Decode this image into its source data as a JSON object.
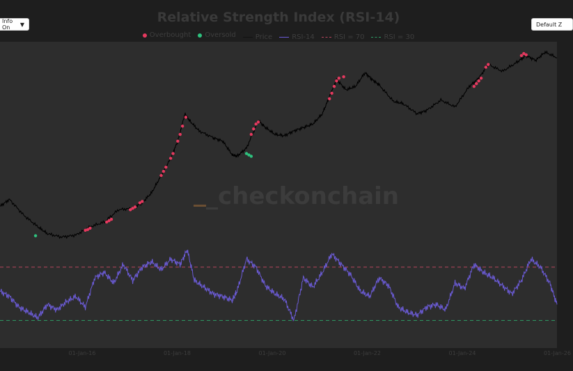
{
  "controls": {
    "info_toggle": "Info On",
    "info_arrow": "▼",
    "zoom_button": "Default Z"
  },
  "watermark": "_checkonchain",
  "colors": {
    "background": "#1e1e1e",
    "plot_bg": "#2d2d2d",
    "overbought": "#e6395f",
    "oversold": "#2ec27e",
    "price": "#000000",
    "rsi": "#6b5bd6",
    "rsi70": "#b8465e",
    "rsi30": "#2f9e66"
  },
  "chart_data": {
    "type": "line",
    "title": "Relative Strength Index (RSI-14)",
    "legend": [
      {
        "name": "Overbought",
        "kind": "dot",
        "color": "#e6395f"
      },
      {
        "name": "Oversold",
        "kind": "dot",
        "color": "#2ec27e"
      },
      {
        "name": "Price",
        "kind": "line",
        "color": "#000000"
      },
      {
        "name": "RSI-14",
        "kind": "line",
        "color": "#6b5bd6"
      },
      {
        "name": "RSI = 70",
        "kind": "dash",
        "color": "#b8465e"
      },
      {
        "name": "RSI = 30",
        "kind": "dash",
        "color": "#2f9e66"
      }
    ],
    "legend_position": "top-center",
    "x_ticks": [
      "01-Jan-16",
      "01-Jan-18",
      "01-Jan-20",
      "01-Jan-22",
      "01-Jan-24",
      "01-Jan-26"
    ],
    "x_range": [
      2014.0,
      2025.75
    ],
    "rsi_range": [
      25,
      85
    ],
    "grid": false,
    "price_log_scale": true,
    "price_range_log10": [
      2.0,
      5.15
    ],
    "price": {
      "x": [
        2014.0,
        2014.2,
        2014.5,
        2014.8,
        2015.0,
        2015.3,
        2015.6,
        2015.9,
        2016.2,
        2016.5,
        2016.8,
        2017.0,
        2017.2,
        2017.4,
        2017.6,
        2017.75,
        2017.9,
        2018.0,
        2018.2,
        2018.5,
        2018.7,
        2018.9,
        2019.0,
        2019.2,
        2019.45,
        2019.6,
        2019.8,
        2020.0,
        2020.2,
        2020.4,
        2020.6,
        2020.8,
        2020.95,
        2021.1,
        2021.3,
        2021.5,
        2021.7,
        2021.85,
        2022.0,
        2022.3,
        2022.5,
        2022.8,
        2023.0,
        2023.3,
        2023.6,
        2023.9,
        2024.1,
        2024.3,
        2024.6,
        2024.9,
        2025.1,
        2025.3,
        2025.5,
        2025.75
      ],
      "log10": [
        2.85,
        2.95,
        2.72,
        2.55,
        2.45,
        2.4,
        2.43,
        2.55,
        2.62,
        2.8,
        2.82,
        2.9,
        3.05,
        3.3,
        3.55,
        3.8,
        4.2,
        4.1,
        3.95,
        3.85,
        3.8,
        3.6,
        3.58,
        3.7,
        4.1,
        4.0,
        3.9,
        3.88,
        3.95,
        4.0,
        4.05,
        4.2,
        4.45,
        4.7,
        4.55,
        4.6,
        4.8,
        4.7,
        4.62,
        4.38,
        4.35,
        4.2,
        4.25,
        4.4,
        4.3,
        4.6,
        4.72,
        4.92,
        4.82,
        4.95,
        5.05,
        4.98,
        5.1,
        5.02
      ]
    },
    "rsi14": {
      "x": [
        2014.0,
        2014.2,
        2014.4,
        2014.6,
        2014.8,
        2015.0,
        2015.2,
        2015.4,
        2015.6,
        2015.8,
        2016.0,
        2016.2,
        2016.4,
        2016.6,
        2016.8,
        2017.0,
        2017.2,
        2017.4,
        2017.6,
        2017.8,
        2017.95,
        2018.1,
        2018.3,
        2018.5,
        2018.7,
        2018.9,
        2019.0,
        2019.2,
        2019.4,
        2019.6,
        2019.8,
        2020.0,
        2020.2,
        2020.4,
        2020.6,
        2020.8,
        2021.0,
        2021.2,
        2021.4,
        2021.6,
        2021.8,
        2022.0,
        2022.2,
        2022.4,
        2022.6,
        2022.8,
        2023.0,
        2023.2,
        2023.4,
        2023.6,
        2023.8,
        2024.0,
        2024.2,
        2024.4,
        2024.6,
        2024.8,
        2025.0,
        2025.2,
        2025.4,
        2025.6,
        2025.75
      ],
      "values": [
        52,
        48,
        40,
        36,
        32,
        42,
        38,
        44,
        48,
        40,
        62,
        66,
        58,
        72,
        60,
        70,
        74,
        68,
        76,
        72,
        83,
        60,
        55,
        50,
        48,
        45,
        52,
        76,
        70,
        56,
        50,
        46,
        30,
        62,
        55,
        66,
        80,
        72,
        64,
        52,
        48,
        62,
        56,
        40,
        36,
        34,
        40,
        42,
        38,
        58,
        54,
        72,
        66,
        62,
        56,
        50,
        60,
        76,
        70,
        58,
        42
      ]
    },
    "overbought_points": [
      {
        "x": 2015.8,
        "log10": 2.5
      },
      {
        "x": 2015.85,
        "log10": 2.51
      },
      {
        "x": 2015.9,
        "log10": 2.53
      },
      {
        "x": 2016.25,
        "log10": 2.62
      },
      {
        "x": 2016.3,
        "log10": 2.64
      },
      {
        "x": 2016.35,
        "log10": 2.66
      },
      {
        "x": 2016.75,
        "log10": 2.8
      },
      {
        "x": 2016.8,
        "log10": 2.82
      },
      {
        "x": 2016.85,
        "log10": 2.84
      },
      {
        "x": 2016.95,
        "log10": 2.9
      },
      {
        "x": 2017.0,
        "log10": 2.92
      },
      {
        "x": 2017.4,
        "log10": 3.3
      },
      {
        "x": 2017.45,
        "log10": 3.36
      },
      {
        "x": 2017.5,
        "log10": 3.42
      },
      {
        "x": 2017.6,
        "log10": 3.55
      },
      {
        "x": 2017.65,
        "log10": 3.62
      },
      {
        "x": 2017.75,
        "log10": 3.8
      },
      {
        "x": 2017.8,
        "log10": 3.9
      },
      {
        "x": 2017.85,
        "log10": 4.02
      },
      {
        "x": 2017.92,
        "log10": 4.15
      },
      {
        "x": 2019.3,
        "log10": 3.9
      },
      {
        "x": 2019.35,
        "log10": 3.98
      },
      {
        "x": 2019.4,
        "log10": 4.05
      },
      {
        "x": 2019.45,
        "log10": 4.08
      },
      {
        "x": 2020.95,
        "log10": 4.42
      },
      {
        "x": 2021.0,
        "log10": 4.5
      },
      {
        "x": 2021.05,
        "log10": 4.6
      },
      {
        "x": 2021.1,
        "log10": 4.68
      },
      {
        "x": 2021.15,
        "log10": 4.72
      },
      {
        "x": 2021.25,
        "log10": 4.74
      },
      {
        "x": 2024.0,
        "log10": 4.6
      },
      {
        "x": 2024.05,
        "log10": 4.64
      },
      {
        "x": 2024.1,
        "log10": 4.68
      },
      {
        "x": 2024.15,
        "log10": 4.72
      },
      {
        "x": 2024.25,
        "log10": 4.88
      },
      {
        "x": 2024.3,
        "log10": 4.92
      },
      {
        "x": 2025.0,
        "log10": 5.05
      },
      {
        "x": 2025.05,
        "log10": 5.08
      },
      {
        "x": 2025.1,
        "log10": 5.06
      }
    ],
    "oversold_points": [
      {
        "x": 2014.75,
        "log10": 2.42
      },
      {
        "x": 2019.2,
        "log10": 3.62
      },
      {
        "x": 2019.25,
        "log10": 3.6
      },
      {
        "x": 2019.3,
        "log10": 3.58
      }
    ]
  }
}
